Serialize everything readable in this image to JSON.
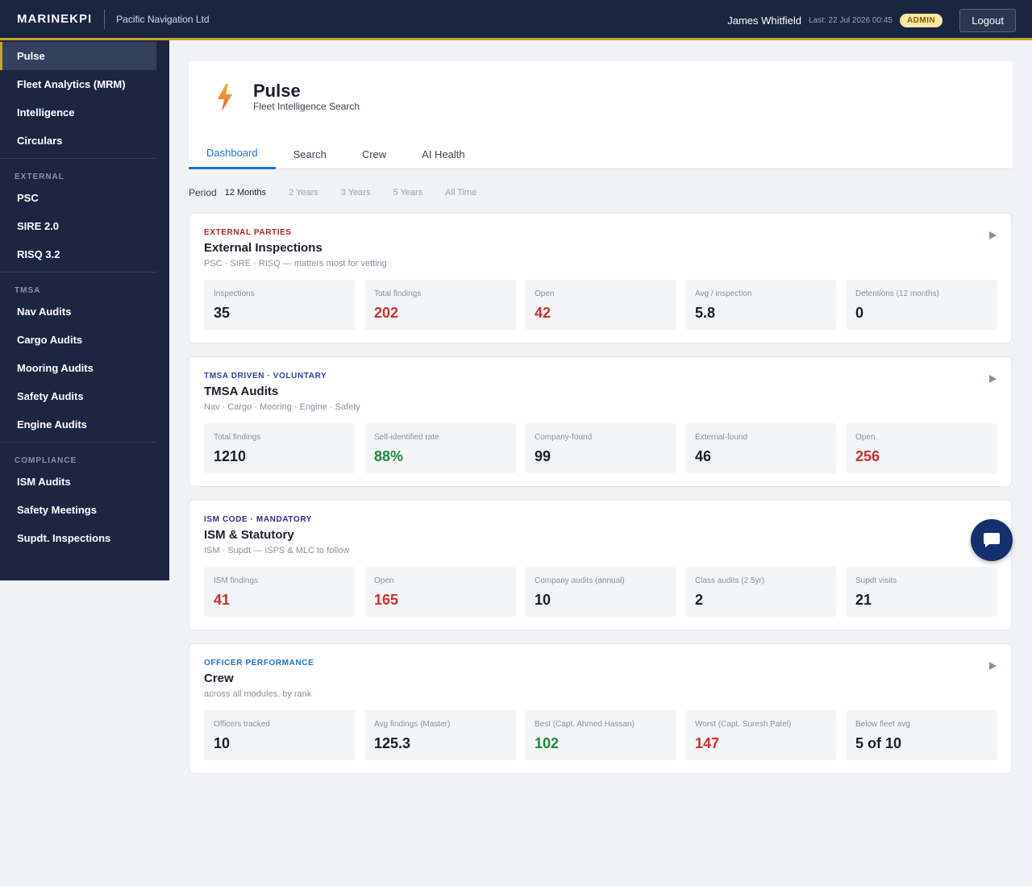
{
  "topbar": {
    "brand": "MARINEKPI",
    "company": "Pacific Navigation Ltd",
    "user_name": "James Whitfield",
    "last_login": "Last: 22 Jul 2026 00:45",
    "role_badge": "ADMIN",
    "logout_label": "Logout"
  },
  "sidebar": {
    "top_items": [
      "Pulse",
      "Fleet Analytics (MRM)",
      "Intelligence",
      "Circulars"
    ],
    "sections": [
      {
        "title": "EXTERNAL",
        "items": [
          "PSC",
          "SIRE 2.0",
          "RISQ 3.2"
        ]
      },
      {
        "title": "TMSA",
        "items": [
          "Nav Audits",
          "Cargo Audits",
          "Mooring Audits",
          "Safety Audits",
          "Engine Audits"
        ]
      },
      {
        "title": "COMPLIANCE",
        "items": [
          "ISM Audits",
          "Safety Meetings",
          "Supdt. Inspections"
        ]
      }
    ]
  },
  "header": {
    "title": "Pulse",
    "subtitle": "Fleet Intelligence Search",
    "tabs": [
      "Dashboard",
      "Search",
      "Crew",
      "AI Health"
    ],
    "active_tab": "Dashboard"
  },
  "period": {
    "label": "Period",
    "options": [
      "12 Months",
      "2 Years",
      "3 Years",
      "5 Years",
      "All Time"
    ],
    "selected": "12 Months"
  },
  "cards": [
    {
      "eyebrow": "EXTERNAL PARTIES",
      "eyebrow_color": "#b0222a",
      "title": "External Inspections",
      "subtitle": "PSC · SIRE · RISQ — matters most for vetting",
      "stats": [
        {
          "label": "Inspections",
          "value": "35",
          "tone": "default"
        },
        {
          "label": "Total findings",
          "value": "202",
          "tone": "red"
        },
        {
          "label": "Open",
          "value": "42",
          "tone": "red"
        },
        {
          "label": "Avg / inspection",
          "value": "5.8",
          "tone": "default"
        },
        {
          "label": "Detentions (12 months)",
          "value": "0",
          "tone": "default"
        }
      ]
    },
    {
      "eyebrow": "TMSA DRIVEN · VOLUNTARY",
      "eyebrow_color": "#2a3f9e",
      "title": "TMSA Audits",
      "subtitle": "Nav · Cargo · Mooring · Engine · Safety",
      "stats": [
        {
          "label": "Total findings",
          "value": "1210",
          "tone": "default"
        },
        {
          "label": "Self-identified rate",
          "value": "88%",
          "tone": "green"
        },
        {
          "label": "Company-found",
          "value": "99",
          "tone": "default"
        },
        {
          "label": "External-found",
          "value": "46",
          "tone": "default"
        },
        {
          "label": "Open",
          "value": "256",
          "tone": "red"
        }
      ]
    },
    {
      "eyebrow": "ISM CODE · MANDATORY",
      "eyebrow_color": "#3a2a8e",
      "title": "ISM & Statutory",
      "subtitle": "ISM · Supdt — ISPS & MLC to follow",
      "stats": [
        {
          "label": "ISM findings",
          "value": "41",
          "tone": "red"
        },
        {
          "label": "Open",
          "value": "165",
          "tone": "red"
        },
        {
          "label": "Company audits (annual)",
          "value": "10",
          "tone": "default"
        },
        {
          "label": "Class audits (2.5yr)",
          "value": "2",
          "tone": "default"
        },
        {
          "label": "Supdt visits",
          "value": "21",
          "tone": "default"
        }
      ]
    },
    {
      "eyebrow": "OFFICER PERFORMANCE",
      "eyebrow_color": "#1f6fd1",
      "title": "Crew",
      "subtitle": "across all modules, by rank",
      "stats": [
        {
          "label": "Officers tracked",
          "value": "10",
          "tone": "default"
        },
        {
          "label": "Avg findings (Master)",
          "value": "125.3",
          "tone": "default"
        },
        {
          "label": "Best (Capt. Ahmed Hassan)",
          "value": "102",
          "tone": "green"
        },
        {
          "label": "Worst (Capt. Suresh Patel)",
          "value": "147",
          "tone": "red"
        },
        {
          "label": "Below fleet avg",
          "value": "5 of 10",
          "tone": "default"
        }
      ]
    }
  ],
  "icons": {
    "pulse": "lightning-bolt-icon",
    "expand": "play-arrow-icon",
    "chat": "chat-bubble-icon"
  },
  "colors": {
    "accent_gold": "#c9a227",
    "accent_blue": "#1f6fd1",
    "red": "#d0302a",
    "green": "#1e8a3a"
  }
}
